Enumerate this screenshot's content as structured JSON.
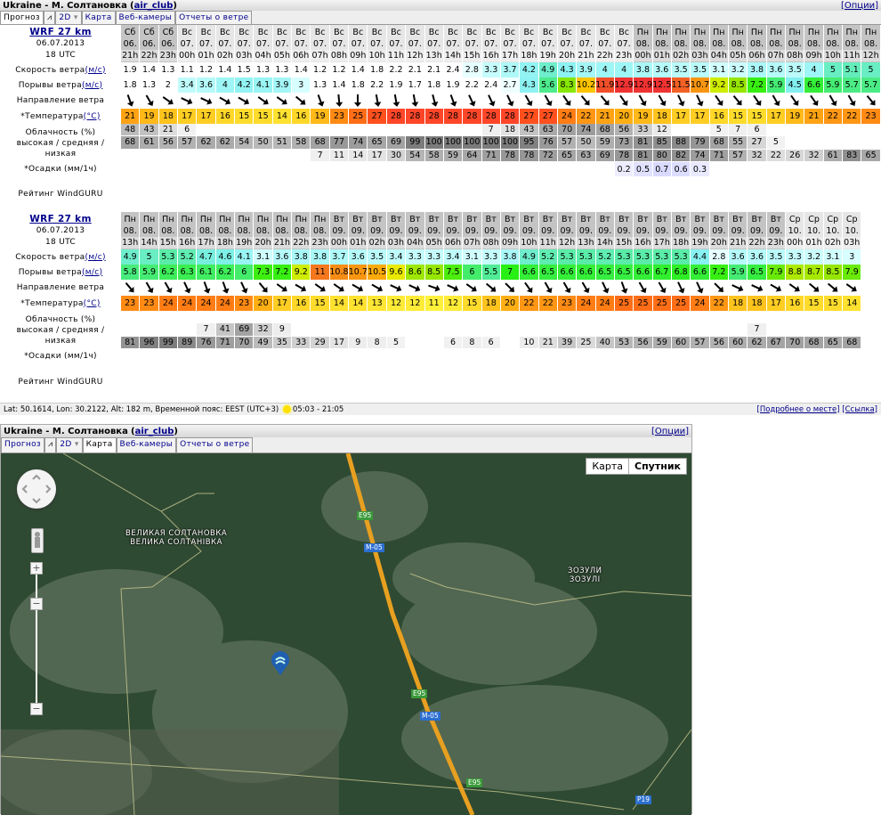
{
  "header": {
    "title": "Ukraine - М. Солтановка",
    "spot_link": "air_club",
    "options": "[Опции]"
  },
  "tabs": [
    "Прогноз",
    "2D",
    "Карта",
    "Веб-камеры",
    "Отчеты о ветре"
  ],
  "row_labels": {
    "speed": "Скорость ветра",
    "speed_unit": "(м/с)",
    "gust": "Порывы ветра",
    "gust_unit": "(м/с)",
    "direction": "Направление ветра",
    "temp": "*Температура",
    "temp_unit": "(°C)",
    "cloud": "Облачность (%)",
    "cloud_sub": "высокая / средняя / низкая",
    "precip": "*Осадки (мм/1ч)",
    "rating": "Рейтинг WindGURU"
  },
  "tables": [
    {
      "model": "WRF 27 km",
      "date": "06.07.2013",
      "init": "18 UTC",
      "days": [
        "Сб",
        "Сб",
        "Сб",
        "Вс",
        "Вс",
        "Вс",
        "Вс",
        "Вс",
        "Вс",
        "Вс",
        "Вс",
        "Вс",
        "Вс",
        "Вс",
        "Вс",
        "Вс",
        "Вс",
        "Вс",
        "Вс",
        "Вс",
        "Вс",
        "Вс",
        "Вс",
        "Вс",
        "Вс",
        "Вс",
        "Вс",
        "Пн",
        "Пн",
        "Пн",
        "Пн",
        "Пн",
        "Пн",
        "Пн",
        "Пн",
        "Пн",
        "Пн",
        "Пн",
        "Пн",
        "Пн"
      ],
      "dates": [
        "06.",
        "06.",
        "06.",
        "07.",
        "07.",
        "07.",
        "07.",
        "07.",
        "07.",
        "07.",
        "07.",
        "07.",
        "07.",
        "07.",
        "07.",
        "07.",
        "07.",
        "07.",
        "07.",
        "07.",
        "07.",
        "07.",
        "07.",
        "07.",
        "07.",
        "07.",
        "07.",
        "08.",
        "08.",
        "08.",
        "08.",
        "08.",
        "08.",
        "08.",
        "08.",
        "08.",
        "08.",
        "08.",
        "08.",
        "08."
      ],
      "hours": [
        "21h",
        "22h",
        "23h",
        "00h",
        "01h",
        "02h",
        "03h",
        "04h",
        "05h",
        "06h",
        "07h",
        "08h",
        "09h",
        "10h",
        "11h",
        "12h",
        "13h",
        "14h",
        "15h",
        "16h",
        "17h",
        "18h",
        "19h",
        "20h",
        "21h",
        "22h",
        "23h",
        "00h",
        "01h",
        "02h",
        "03h",
        "04h",
        "05h",
        "06h",
        "07h",
        "08h",
        "09h",
        "10h",
        "11h",
        "12h"
      ],
      "speed": [
        "1.9",
        "1.4",
        "1.3",
        "1.1",
        "1.2",
        "1.4",
        "1.5",
        "1.3",
        "1.3",
        "1.4",
        "1.2",
        "1.2",
        "1.4",
        "1.8",
        "2.2",
        "2.1",
        "2.1",
        "2.4",
        "2.8",
        "3.3",
        "3.7",
        "4.2",
        "4.9",
        "4.3",
        "3.9",
        "4",
        "4",
        "3.8",
        "3.6",
        "3.5",
        "3.5",
        "3.1",
        "3.2",
        "3.8",
        "3.6",
        "3.5",
        "4",
        "5",
        "5.1",
        "5"
      ],
      "gust": [
        "1.8",
        "1.3",
        "2",
        "3.4",
        "3.6",
        "4",
        "4.2",
        "4.1",
        "3.9",
        "3",
        "1.3",
        "1.4",
        "1.8",
        "2.2",
        "1.9",
        "1.7",
        "1.8",
        "1.9",
        "2.2",
        "2.4",
        "2.7",
        "4.3",
        "5.6",
        "8.3",
        "10.2",
        "11.9",
        "12.9",
        "12.9",
        "12.5",
        "11.5",
        "10.7",
        "9.2",
        "8.5",
        "7.2",
        "5.9",
        "4.5",
        "6.6",
        "5.9",
        "5.7",
        "5.7"
      ],
      "dir": [
        160,
        150,
        125,
        115,
        115,
        120,
        120,
        125,
        125,
        130,
        160,
        175,
        180,
        170,
        170,
        170,
        165,
        160,
        155,
        155,
        155,
        150,
        150,
        145,
        140,
        140,
        145,
        150,
        150,
        155,
        155,
        145,
        140,
        145,
        150,
        145,
        145,
        150,
        150,
        140
      ],
      "temp": [
        "21",
        "19",
        "18",
        "17",
        "17",
        "16",
        "15",
        "15",
        "14",
        "16",
        "19",
        "23",
        "25",
        "27",
        "28",
        "28",
        "28",
        "28",
        "28",
        "28",
        "28",
        "27",
        "27",
        "24",
        "22",
        "21",
        "20",
        "19",
        "18",
        "17",
        "17",
        "16",
        "15",
        "15",
        "17",
        "19",
        "21",
        "22",
        "22",
        "23"
      ],
      "cloud_high": [
        "48",
        "43",
        "21",
        "6",
        "",
        "",
        "",
        "",
        "",
        "",
        "",
        "",
        "",
        "",
        "",
        "",
        "",
        "",
        "",
        "7",
        "18",
        "43",
        "63",
        "70",
        "74",
        "68",
        "56",
        "33",
        "12",
        "",
        "",
        "5",
        "7",
        "6",
        "",
        "",
        "",
        "",
        "",
        ""
      ],
      "cloud_mid": [
        "68",
        "61",
        "56",
        "57",
        "62",
        "62",
        "54",
        "50",
        "51",
        "58",
        "68",
        "77",
        "74",
        "65",
        "69",
        "99",
        "100",
        "100",
        "100",
        "100",
        "100",
        "95",
        "76",
        "57",
        "50",
        "59",
        "73",
        "81",
        "85",
        "88",
        "79",
        "68",
        "55",
        "27",
        "5",
        "",
        "",
        "",
        "",
        ""
      ],
      "cloud_low": [
        "",
        "",
        "",
        "",
        "",
        "",
        "",
        "",
        "",
        "",
        "7",
        "11",
        "14",
        "17",
        "30",
        "54",
        "58",
        "59",
        "64",
        "71",
        "78",
        "78",
        "72",
        "65",
        "63",
        "69",
        "78",
        "81",
        "80",
        "82",
        "74",
        "71",
        "57",
        "32",
        "22",
        "26",
        "32",
        "61",
        "83",
        "65"
      ],
      "precip": [
        "",
        "",
        "",
        "",
        "",
        "",
        "",
        "",
        "",
        "",
        "",
        "",
        "",
        "",
        "",
        "",
        "",
        "",
        "",
        "",
        "",
        "",
        "",
        "",
        "",
        "",
        "0.2",
        "0.5",
        "0.7",
        "0.6",
        "0.3",
        "",
        "",
        "",
        "",
        "",
        "",
        "",
        "",
        ""
      ]
    },
    {
      "model": "WRF 27 km",
      "date": "06.07.2013",
      "init": "18 UTC",
      "days": [
        "Пн",
        "Пн",
        "Пн",
        "Пн",
        "Пн",
        "Пн",
        "Пн",
        "Пн",
        "Пн",
        "Пн",
        "Пн",
        "Вт",
        "Вт",
        "Вт",
        "Вт",
        "Вт",
        "Вт",
        "Вт",
        "Вт",
        "Вт",
        "Вт",
        "Вт",
        "Вт",
        "Вт",
        "Вт",
        "Вт",
        "Вт",
        "Вт",
        "Вт",
        "Вт",
        "Вт",
        "Вт",
        "Вт",
        "Вт",
        "Вт",
        "Ср",
        "Ср",
        "Ср",
        "Ср"
      ],
      "dates": [
        "08.",
        "08.",
        "08.",
        "08.",
        "08.",
        "08.",
        "08.",
        "08.",
        "08.",
        "08.",
        "08.",
        "09.",
        "09.",
        "09.",
        "09.",
        "09.",
        "09.",
        "09.",
        "09.",
        "09.",
        "09.",
        "09.",
        "09.",
        "09.",
        "09.",
        "09.",
        "09.",
        "09.",
        "09.",
        "09.",
        "09.",
        "09.",
        "09.",
        "09.",
        "09.",
        "10.",
        "10.",
        "10.",
        "10."
      ],
      "hours": [
        "13h",
        "14h",
        "15h",
        "16h",
        "17h",
        "18h",
        "19h",
        "20h",
        "21h",
        "22h",
        "23h",
        "00h",
        "01h",
        "02h",
        "03h",
        "04h",
        "05h",
        "06h",
        "07h",
        "08h",
        "09h",
        "10h",
        "11h",
        "12h",
        "13h",
        "14h",
        "15h",
        "16h",
        "17h",
        "18h",
        "19h",
        "20h",
        "21h",
        "22h",
        "23h",
        "00h",
        "01h",
        "02h",
        "03h"
      ],
      "speed": [
        "4.9",
        "5",
        "5.3",
        "5.2",
        "4.7",
        "4.6",
        "4.1",
        "3.1",
        "3.6",
        "3.8",
        "3.8",
        "3.7",
        "3.6",
        "3.5",
        "3.4",
        "3.3",
        "3.3",
        "3.4",
        "3.1",
        "3.3",
        "3.8",
        "4.9",
        "5.2",
        "5.3",
        "5.3",
        "5.2",
        "5.3",
        "5.3",
        "5.3",
        "5.3",
        "4.4",
        "2.8",
        "3.6",
        "3.6",
        "3.5",
        "3.3",
        "3.2",
        "3.1",
        "3"
      ],
      "gust": [
        "5.8",
        "5.9",
        "6.2",
        "6.3",
        "6.1",
        "6.2",
        "6",
        "7.3",
        "7.2",
        "9.2",
        "11",
        "10.8",
        "10.7",
        "10.5",
        "9.6",
        "8.6",
        "8.5",
        "7.5",
        "6",
        "5.5",
        "7",
        "6.6",
        "6.5",
        "6.6",
        "6.6",
        "6.5",
        "6.5",
        "6.6",
        "6.7",
        "6.8",
        "6.6",
        "7.2",
        "5.9",
        "6.5",
        "7.9",
        "8.8",
        "8.7",
        "8.5",
        "7.9"
      ],
      "dir": [
        140,
        150,
        150,
        155,
        160,
        160,
        155,
        140,
        125,
        120,
        125,
        125,
        120,
        120,
        115,
        115,
        110,
        115,
        125,
        130,
        135,
        145,
        150,
        150,
        150,
        155,
        160,
        150,
        150,
        155,
        155,
        135,
        115,
        115,
        120,
        125,
        130,
        130,
        125
      ],
      "temp": [
        "23",
        "23",
        "24",
        "24",
        "24",
        "24",
        "23",
        "20",
        "17",
        "16",
        "15",
        "14",
        "14",
        "13",
        "12",
        "12",
        "11",
        "12",
        "15",
        "18",
        "20",
        "22",
        "22",
        "23",
        "24",
        "24",
        "25",
        "25",
        "25",
        "25",
        "24",
        "22",
        "18",
        "18",
        "17",
        "16",
        "15",
        "15",
        "14"
      ],
      "cloud_high": [
        "",
        "",
        "",
        "",
        "",
        "",
        "",
        "",
        "",
        "",
        "",
        "",
        "",
        "",
        "",
        "",
        "",
        "",
        "",
        "",
        "",
        "",
        "",
        "",
        "",
        "",
        "",
        "",
        "",
        "",
        "",
        "",
        "",
        "",
        "",
        "",
        "",
        "",
        ""
      ],
      "cloud_mid": [
        "",
        "",
        "",
        "",
        "7",
        "41",
        "69",
        "32",
        "9",
        "",
        "",
        "",
        "",
        "",
        "",
        "",
        "",
        "",
        "",
        "",
        "",
        "",
        "",
        "",
        "",
        "",
        "",
        "",
        "",
        "",
        "",
        "",
        "",
        "7",
        "",
        "",
        "",
        "",
        ""
      ],
      "cloud_low": [
        "81",
        "96",
        "99",
        "89",
        "76",
        "71",
        "70",
        "49",
        "35",
        "33",
        "29",
        "17",
        "9",
        "8",
        "5",
        "",
        "",
        "6",
        "8",
        "6",
        "",
        "10",
        "21",
        "39",
        "25",
        "40",
        "53",
        "56",
        "59",
        "60",
        "57",
        "56",
        "60",
        "62",
        "67",
        "70",
        "68",
        "65",
        "68"
      ],
      "precip": [
        "",
        "",
        "",
        "",
        "",
        "",
        "",
        "",
        "",
        "",
        "",
        "",
        "",
        "",
        "",
        "",
        "",
        "",
        "",
        "",
        "",
        "",
        "",
        "",
        "",
        "",
        "",
        "",
        "",
        "",
        "",
        "",
        "",
        "",
        "",
        "",
        "",
        "",
        ""
      ]
    }
  ],
  "footer": {
    "info": "Lat: 50.1614, Lon: 30.2122, Alt: 182 m, Временной пояс: EEST (UTC+3)",
    "sun": "05:03 - 21:05",
    "details": "[Подробнее о месте]",
    "link": "[Ссылка]"
  },
  "map": {
    "type_map": "Карта",
    "type_satellite": "Спутник",
    "selected": "Спутник",
    "places": [
      "ВЕЛИКАЯ СОЛТАНОВКА",
      "ВЕЛИКА СОЛТАНІВКА",
      "ЗОЗУЛИ",
      "ЗОЗУЛІ"
    ],
    "roads": [
      "E95",
      "M-05",
      "E95",
      "M-05",
      "E95",
      "P19"
    ]
  },
  "colors": {
    "accent_link": "#00008b",
    "map_bg": "#2f4a33",
    "highway": "#e8a020"
  }
}
